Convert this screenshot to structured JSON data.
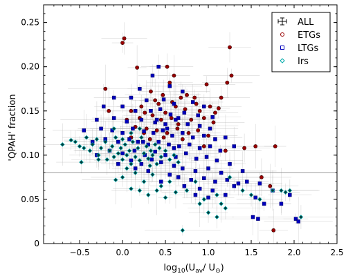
{
  "chart_data": {
    "type": "scatter",
    "xlabel_parts": {
      "pre": "log",
      "sub": "10",
      "mid": "(U",
      "sub2": "av",
      "slash": "/ U",
      "sub3": "⊙",
      "post": ")"
    },
    "ylabel": "'QPAH' fraction",
    "xlim": [
      -0.92,
      2.5
    ],
    "ylim": [
      0.0,
      0.27
    ],
    "xticks": [
      -0.5,
      0.0,
      0.5,
      1.0,
      1.5,
      2.0,
      2.5
    ],
    "xtick_labels": [
      "−0.5",
      "0.0",
      "0.5",
      "1.0",
      "1.5",
      "2.0",
      "2.5"
    ],
    "yticks": [
      0.0,
      0.05,
      0.1,
      0.15,
      0.2,
      0.25
    ],
    "ytick_labels": [
      "0",
      "0.05",
      "0.10",
      "0.15",
      "0.20",
      "0.25"
    ],
    "reference_line_y": 0.08,
    "legend_position": "top-right",
    "legend": [
      "ALL",
      "ETGs",
      "LTGs",
      "Irs"
    ],
    "colors": {
      "ALL": "#b8b8b8",
      "ETGs": "#990000",
      "LTGs": "#0000bb",
      "Irs": "#00aaaa",
      "Irs_dark": "#003a3a",
      "refline": "#777777"
    },
    "series": [
      {
        "name": "ETGs",
        "marker": "circle",
        "points": [
          [
            0.02,
            0.232
          ],
          [
            0.0,
            0.227
          ],
          [
            1.25,
            0.222
          ],
          [
            0.17,
            0.199
          ],
          [
            0.52,
            0.2
          ],
          [
            0.6,
            0.19
          ],
          [
            1.27,
            0.19
          ],
          [
            0.55,
            0.182
          ],
          [
            0.98,
            0.18
          ],
          [
            1.22,
            0.182
          ],
          [
            0.75,
            0.168
          ],
          [
            -0.2,
            0.175
          ],
          [
            0.33,
            0.172
          ],
          [
            0.47,
            0.168
          ],
          [
            0.68,
            0.165
          ],
          [
            1.15,
            0.165
          ],
          [
            -0.16,
            0.15
          ],
          [
            0.1,
            0.15
          ],
          [
            0.22,
            0.155
          ],
          [
            0.42,
            0.158
          ],
          [
            0.5,
            0.148
          ],
          [
            0.62,
            0.155
          ],
          [
            0.73,
            0.152
          ],
          [
            0.86,
            0.158
          ],
          [
            0.9,
            0.15
          ],
          [
            1.02,
            0.155
          ],
          [
            1.12,
            0.153
          ],
          [
            0.05,
            0.14
          ],
          [
            0.2,
            0.142
          ],
          [
            0.35,
            0.145
          ],
          [
            0.45,
            0.14
          ],
          [
            0.57,
            0.142
          ],
          [
            0.65,
            0.135
          ],
          [
            0.8,
            0.14
          ],
          [
            0.95,
            0.142
          ],
          [
            1.06,
            0.137
          ],
          [
            0.15,
            0.132
          ],
          [
            0.28,
            0.13
          ],
          [
            0.4,
            0.128
          ],
          [
            0.52,
            0.125
          ],
          [
            0.64,
            0.13
          ],
          [
            0.77,
            0.125
          ],
          [
            0.88,
            0.128
          ],
          [
            1.0,
            0.122
          ],
          [
            0.1,
            0.12
          ],
          [
            0.32,
            0.118
          ],
          [
            0.48,
            0.12
          ],
          [
            0.7,
            0.118
          ],
          [
            1.55,
            0.11
          ],
          [
            1.42,
            0.108
          ],
          [
            1.78,
            0.11
          ],
          [
            1.2,
            0.105
          ],
          [
            0.95,
            0.11
          ],
          [
            1.62,
            0.075
          ],
          [
            1.72,
            0.065
          ],
          [
            1.76,
            0.015
          ],
          [
            0.25,
            0.125
          ],
          [
            0.58,
            0.16
          ],
          [
            0.38,
            0.162
          ],
          [
            0.84,
            0.165
          ],
          [
            1.08,
            0.148
          ],
          [
            0.26,
            0.148
          ]
        ]
      },
      {
        "name": "LTGs",
        "marker": "square",
        "points": [
          [
            0.42,
            0.2
          ],
          [
            0.35,
            0.19
          ],
          [
            0.55,
            0.178
          ],
          [
            0.2,
            0.175
          ],
          [
            0.7,
            0.172
          ],
          [
            -0.1,
            0.165
          ],
          [
            0.1,
            0.165
          ],
          [
            0.28,
            0.162
          ],
          [
            0.48,
            0.163
          ],
          [
            0.6,
            0.158
          ],
          [
            0.82,
            0.16
          ],
          [
            0.95,
            0.155
          ],
          [
            -0.22,
            0.155
          ],
          [
            0.0,
            0.155
          ],
          [
            0.15,
            0.15
          ],
          [
            0.33,
            0.15
          ],
          [
            0.44,
            0.152
          ],
          [
            0.56,
            0.146
          ],
          [
            0.72,
            0.148
          ],
          [
            0.88,
            0.145
          ],
          [
            1.05,
            0.143
          ],
          [
            -0.3,
            0.14
          ],
          [
            -0.1,
            0.142
          ],
          [
            0.05,
            0.138
          ],
          [
            0.22,
            0.14
          ],
          [
            0.38,
            0.137
          ],
          [
            0.5,
            0.135
          ],
          [
            0.62,
            0.14
          ],
          [
            0.76,
            0.135
          ],
          [
            0.9,
            0.133
          ],
          [
            1.02,
            0.13
          ],
          [
            -0.45,
            0.128
          ],
          [
            -0.25,
            0.13
          ],
          [
            -0.12,
            0.128
          ],
          [
            0.0,
            0.125
          ],
          [
            0.12,
            0.13
          ],
          [
            0.25,
            0.127
          ],
          [
            0.36,
            0.125
          ],
          [
            0.47,
            0.128
          ],
          [
            0.58,
            0.122
          ],
          [
            0.7,
            0.125
          ],
          [
            0.82,
            0.12
          ],
          [
            0.95,
            0.122
          ],
          [
            1.08,
            0.118
          ],
          [
            1.2,
            0.12
          ],
          [
            -0.35,
            0.115
          ],
          [
            -0.2,
            0.118
          ],
          [
            -0.05,
            0.115
          ],
          [
            0.08,
            0.118
          ],
          [
            0.18,
            0.115
          ],
          [
            0.3,
            0.112
          ],
          [
            0.42,
            0.115
          ],
          [
            0.54,
            0.112
          ],
          [
            0.66,
            0.11
          ],
          [
            0.78,
            0.112
          ],
          [
            0.9,
            0.108
          ],
          [
            1.02,
            0.11
          ],
          [
            1.14,
            0.105
          ],
          [
            1.3,
            0.11
          ],
          [
            -0.15,
            0.105
          ],
          [
            0.0,
            0.102
          ],
          [
            0.14,
            0.105
          ],
          [
            0.26,
            0.1
          ],
          [
            0.38,
            0.104
          ],
          [
            0.5,
            0.1
          ],
          [
            0.62,
            0.098
          ],
          [
            0.74,
            0.102
          ],
          [
            0.86,
            0.096
          ],
          [
            0.98,
            0.098
          ],
          [
            1.1,
            0.094
          ],
          [
            1.25,
            0.09
          ],
          [
            -0.05,
            0.09
          ],
          [
            0.1,
            0.094
          ],
          [
            0.22,
            0.09
          ],
          [
            0.45,
            0.092
          ],
          [
            0.6,
            0.088
          ],
          [
            0.7,
            0.085
          ],
          [
            0.85,
            0.082
          ],
          [
            1.0,
            0.085
          ],
          [
            1.15,
            0.08
          ],
          [
            1.4,
            0.082
          ],
          [
            0.3,
            0.082
          ],
          [
            0.55,
            0.078
          ],
          [
            0.65,
            0.075
          ],
          [
            0.8,
            0.072
          ],
          [
            0.95,
            0.074
          ],
          [
            1.08,
            0.07
          ],
          [
            1.22,
            0.072
          ],
          [
            1.35,
            0.068
          ],
          [
            0.45,
            0.07
          ],
          [
            0.72,
            0.065
          ],
          [
            0.9,
            0.062
          ],
          [
            1.05,
            0.06
          ],
          [
            1.3,
            0.065
          ],
          [
            1.45,
            0.07
          ],
          [
            1.6,
            0.068
          ],
          [
            1.75,
            0.06
          ],
          [
            0.85,
            0.055
          ],
          [
            1.0,
            0.052
          ],
          [
            1.2,
            0.055
          ],
          [
            1.55,
            0.052
          ],
          [
            1.95,
            0.055
          ],
          [
            1.65,
            0.045
          ],
          [
            1.85,
            0.045
          ],
          [
            1.52,
            0.03
          ],
          [
            1.58,
            0.028
          ],
          [
            2.02,
            0.028
          ],
          [
            2.05,
            0.025
          ],
          [
            0.6,
            0.108
          ],
          [
            0.34,
            0.095
          ],
          [
            0.15,
            0.085
          ],
          [
            0.4,
            0.14
          ],
          [
            -0.3,
            0.1
          ],
          [
            0.52,
            0.13
          ],
          [
            0.24,
            0.115
          ],
          [
            0.65,
            0.142
          ]
        ]
      },
      {
        "name": "Irs",
        "marker": "diamond",
        "points": [
          [
            -0.6,
            0.117
          ],
          [
            -0.55,
            0.115
          ],
          [
            -0.5,
            0.11
          ],
          [
            -0.45,
            0.108
          ],
          [
            -0.42,
            0.12
          ],
          [
            -0.38,
            0.105
          ],
          [
            -0.35,
            0.112
          ],
          [
            -0.3,
            0.118
          ],
          [
            -0.28,
            0.1
          ],
          [
            -0.25,
            0.108
          ],
          [
            -0.2,
            0.115
          ],
          [
            -0.18,
            0.095
          ],
          [
            -0.15,
            0.105
          ],
          [
            -0.12,
            0.11
          ],
          [
            -0.1,
            0.098
          ],
          [
            -0.08,
            0.12
          ],
          [
            -0.05,
            0.102
          ],
          [
            -0.02,
            0.108
          ],
          [
            0.0,
            0.095
          ],
          [
            0.03,
            0.112
          ],
          [
            0.05,
            0.1
          ],
          [
            0.08,
            0.105
          ],
          [
            0.1,
            0.09
          ],
          [
            0.12,
            0.115
          ],
          [
            0.15,
            0.098
          ],
          [
            0.18,
            0.108
          ],
          [
            0.2,
            0.094
          ],
          [
            0.22,
            0.12
          ],
          [
            0.25,
            0.102
          ],
          [
            0.28,
            0.11
          ],
          [
            0.3,
            0.096
          ],
          [
            0.33,
            0.105
          ],
          [
            0.35,
            0.1
          ],
          [
            0.38,
            0.112
          ],
          [
            0.4,
            0.09
          ],
          [
            0.43,
            0.108
          ],
          [
            0.45,
            0.098
          ],
          [
            0.5,
            0.105
          ],
          [
            0.55,
            0.095
          ],
          [
            0.6,
            0.1
          ],
          [
            0.65,
            0.092
          ],
          [
            0.1,
            0.125
          ],
          [
            0.2,
            0.13
          ],
          [
            -0.1,
            0.13
          ],
          [
            0.0,
            0.118
          ],
          [
            -0.28,
            0.095
          ],
          [
            0.05,
            0.085
          ],
          [
            0.15,
            0.08
          ],
          [
            0.25,
            0.07
          ],
          [
            0.35,
            0.078
          ],
          [
            0.45,
            0.065
          ],
          [
            0.55,
            0.07
          ],
          [
            0.2,
            0.06
          ],
          [
            0.3,
            0.055
          ],
          [
            0.4,
            0.06
          ],
          [
            0.5,
            0.052
          ],
          [
            0.62,
            0.058
          ],
          [
            0.75,
            0.06
          ],
          [
            0.85,
            0.07
          ],
          [
            0.95,
            0.05
          ],
          [
            1.1,
            0.055
          ],
          [
            1.15,
            0.045
          ],
          [
            1.2,
            0.04
          ],
          [
            1.25,
            0.075
          ],
          [
            1.4,
            0.06
          ],
          [
            1.5,
            0.055
          ],
          [
            1.6,
            0.05
          ],
          [
            1.75,
            0.06
          ],
          [
            1.85,
            0.06
          ],
          [
            1.9,
            0.058
          ],
          [
            1.95,
            0.06
          ],
          [
            2.08,
            0.03
          ],
          [
            1.0,
            0.035
          ],
          [
            0.9,
            0.045
          ],
          [
            0.7,
            0.015
          ],
          [
            1.1,
            0.03
          ],
          [
            -0.08,
            0.072
          ],
          [
            0.0,
            0.075
          ],
          [
            0.1,
            0.062
          ],
          [
            -0.7,
            0.112
          ],
          [
            -0.48,
            0.092
          ],
          [
            0.32,
            0.088
          ]
        ]
      }
    ]
  }
}
